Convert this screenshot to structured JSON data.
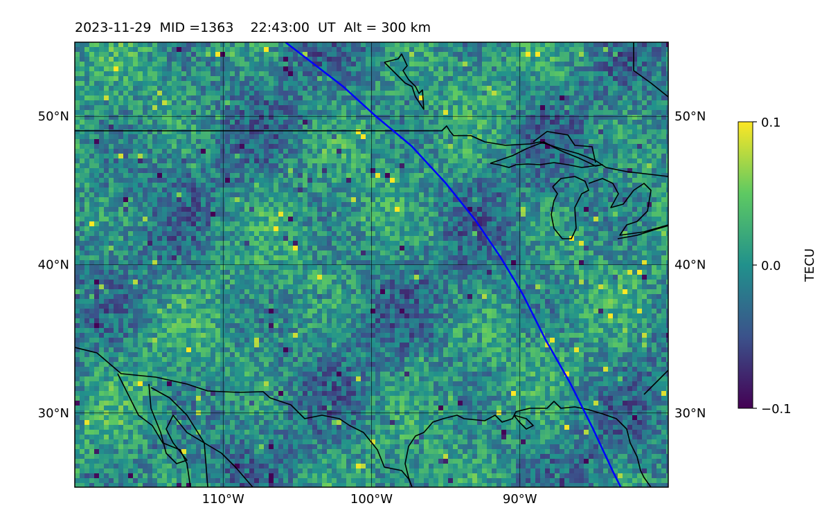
{
  "title": "2023-11-29  MID =1363    22:43:00  UT  Alt = 300 km",
  "map": {
    "lat_range": [
      25,
      55
    ],
    "lon_range": [
      -120,
      -80
    ],
    "grid_lats": [
      30,
      40,
      50
    ],
    "grid_lons": [
      -110,
      -100,
      -90
    ],
    "lat_labels": [
      "30°N",
      "40°N",
      "50°N"
    ],
    "lon_labels": [
      "110°W",
      "100°W",
      "90°W"
    ],
    "field": "TEC perturbation map (viridis)",
    "track_color": "#0000ff",
    "track_points_lonlat": [
      [
        -105.8,
        55
      ],
      [
        -101.9,
        52
      ],
      [
        -99.7,
        50
      ],
      [
        -97.3,
        48
      ],
      [
        -95.0,
        45.5
      ],
      [
        -93.0,
        43
      ],
      [
        -91.3,
        40.5
      ],
      [
        -89.8,
        38
      ],
      [
        -88.3,
        35
      ],
      [
        -86.6,
        32
      ],
      [
        -85.1,
        29
      ],
      [
        -83.7,
        26
      ],
      [
        -83.2,
        25
      ]
    ]
  },
  "colorbar": {
    "label": "TECU",
    "min": -0.1,
    "max": 0.1,
    "ticks": [
      {
        "value": 0.1,
        "label": "0.1"
      },
      {
        "value": 0.0,
        "label": "0.0"
      },
      {
        "value": -0.1,
        "label": "−0.1"
      }
    ],
    "colormap": [
      "#440154",
      "#3b528b",
      "#21918c",
      "#5ec962",
      "#fde725"
    ]
  }
}
